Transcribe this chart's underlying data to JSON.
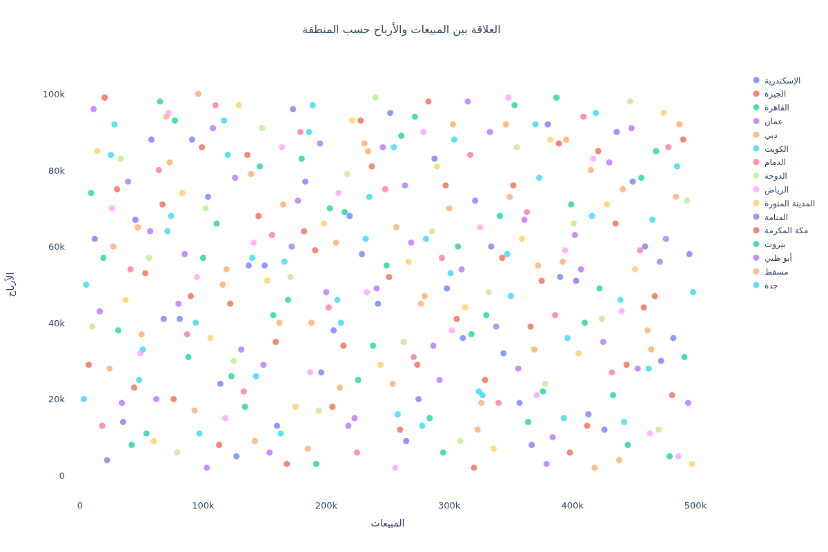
{
  "chart_data": {
    "type": "scatter",
    "title": "العلاقة بين المبيعات والأرباح حسب المنطقة",
    "xlabel": "المبيعات",
    "ylabel": "الأرباح",
    "xlim": [
      0,
      500000
    ],
    "ylim": [
      0,
      100000
    ],
    "xticks": [
      {
        "value": 0,
        "label": "0"
      },
      {
        "value": 100000,
        "label": "100k"
      },
      {
        "value": 200000,
        "label": "200k"
      },
      {
        "value": 300000,
        "label": "300k"
      },
      {
        "value": 400000,
        "label": "400k"
      },
      {
        "value": 500000,
        "label": "500k"
      }
    ],
    "yticks": [
      {
        "value": 0,
        "label": "0"
      },
      {
        "value": 20000,
        "label": "20k"
      },
      {
        "value": 40000,
        "label": "40k"
      },
      {
        "value": 60000,
        "label": "60k"
      },
      {
        "value": 80000,
        "label": "80k"
      },
      {
        "value": 100000,
        "label": "100k"
      }
    ],
    "grid": false,
    "legend": "top right",
    "marker": "circle",
    "series": [
      {
        "name": "الإسكندرية",
        "color": "#636efa",
        "x": [
          12000,
          35000,
          58000,
          81000,
          104000,
          127000,
          150000,
          173000,
          196000,
          219000,
          242000,
          265000,
          288000,
          311000,
          334000,
          357000,
          380000,
          403000,
          426000,
          449000,
          472000,
          495000
        ],
        "values": [
          62000,
          14000,
          88000,
          41000,
          73000,
          5000,
          55000,
          96000,
          27000,
          68000,
          45000,
          9000,
          83000,
          36000,
          60000,
          19000,
          92000,
          51000,
          12000,
          77000,
          30000,
          58000
        ]
      },
      {
        "name": "الجيزة",
        "color": "#ef553b",
        "x": [
          20000,
          44000,
          67000,
          90000,
          113000,
          136000,
          159000,
          182000,
          205000,
          228000,
          251000,
          274000,
          297000,
          320000,
          343000,
          366000,
          389000,
          412000,
          435000,
          458000,
          481000
        ],
        "values": [
          99000,
          23000,
          71000,
          47000,
          8000,
          84000,
          35000,
          64000,
          18000,
          93000,
          52000,
          29000,
          76000,
          2000,
          57000,
          39000,
          87000,
          13000,
          66000,
          44000,
          21000
        ]
      },
      {
        "name": "القاهرة",
        "color": "#00cc96",
        "x": [
          9000,
          31000,
          54000,
          77000,
          100000,
          123000,
          146000,
          169000,
          192000,
          215000,
          238000,
          261000,
          284000,
          307000,
          330000,
          353000,
          376000,
          399000,
          422000,
          445000,
          468000,
          491000
        ],
        "values": [
          74000,
          38000,
          11000,
          93000,
          57000,
          26000,
          81000,
          46000,
          3000,
          69000,
          34000,
          89000,
          15000,
          60000,
          42000,
          97000,
          22000,
          71000,
          49000,
          8000,
          85000,
          31000
        ]
      },
      {
        "name": "عمان",
        "color": "#ab63fa",
        "x": [
          16000,
          39000,
          62000,
          85000,
          108000,
          131000,
          154000,
          177000,
          200000,
          223000,
          246000,
          269000,
          292000,
          315000,
          338000,
          361000,
          384000,
          407000,
          430000,
          453000,
          476000
        ],
        "values": [
          43000,
          77000,
          20000,
          58000,
          91000,
          33000,
          6000,
          72000,
          48000,
          15000,
          86000,
          61000,
          25000,
          98000,
          39000,
          67000,
          10000,
          54000,
          82000,
          28000,
          62000
        ]
      },
      {
        "name": "دبي",
        "color": "#ffa15a",
        "x": [
          24000,
          47000,
          70000,
          93000,
          116000,
          139000,
          162000,
          185000,
          208000,
          231000,
          254000,
          277000,
          300000,
          323000,
          346000,
          369000,
          392000,
          415000,
          438000,
          461000,
          484000
        ],
        "values": [
          28000,
          65000,
          94000,
          17000,
          50000,
          79000,
          40000,
          7000,
          61000,
          87000,
          24000,
          45000,
          70000,
          12000,
          92000,
          33000,
          56000,
          80000,
          4000,
          38000,
          73000
        ]
      },
      {
        "name": "الكويت",
        "color": "#19d3f3",
        "x": [
          5000,
          28000,
          51000,
          74000,
          97000,
          120000,
          143000,
          166000,
          189000,
          212000,
          235000,
          258000,
          281000,
          304000,
          327000,
          350000,
          373000,
          396000,
          419000,
          442000,
          465000,
          498000
        ],
        "values": [
          50000,
          92000,
          33000,
          68000,
          11000,
          84000,
          26000,
          56000,
          97000,
          40000,
          73000,
          16000,
          62000,
          88000,
          21000,
          47000,
          78000,
          36000,
          95000,
          14000,
          67000,
          48000
        ]
      },
      {
        "name": "الدمام",
        "color": "#ff6692",
        "x": [
          18000,
          41000,
          64000,
          87000,
          110000,
          133000,
          156000,
          179000,
          202000,
          225000,
          248000,
          271000,
          294000,
          317000,
          340000,
          363000,
          386000,
          409000,
          432000,
          455000,
          478000
        ],
        "values": [
          13000,
          54000,
          80000,
          37000,
          97000,
          22000,
          63000,
          90000,
          44000,
          6000,
          75000,
          31000,
          57000,
          84000,
          19000,
          69000,
          42000,
          94000,
          27000,
          59000,
          86000
        ]
      },
      {
        "name": "الدوحة",
        "color": "#b6e880",
        "x": [
          10000,
          33000,
          56000,
          79000,
          102000,
          125000,
          148000,
          171000,
          194000,
          217000,
          240000,
          263000,
          286000,
          309000,
          332000,
          355000,
          378000,
          401000,
          424000,
          447000,
          470000,
          493000
        ],
        "values": [
          39000,
          83000,
          57000,
          6000,
          70000,
          30000,
          91000,
          52000,
          17000,
          79000,
          99000,
          35000,
          64000,
          9000,
          48000,
          86000,
          24000,
          66000,
          41000,
          98000,
          12000,
          72000
        ]
      },
      {
        "name": "الرياض",
        "color": "#ff97ff",
        "x": [
          26000,
          49000,
          72000,
          95000,
          118000,
          141000,
          164000,
          187000,
          210000,
          233000,
          256000,
          279000,
          302000,
          325000,
          348000,
          371000,
          394000,
          417000,
          440000,
          463000,
          486000
        ],
        "values": [
          70000,
          32000,
          95000,
          52000,
          15000,
          61000,
          86000,
          27000,
          74000,
          48000,
          2000,
          90000,
          38000,
          65000,
          99000,
          21000,
          59000,
          83000,
          43000,
          11000,
          5000
        ]
      },
      {
        "name": "المدينة المنورة",
        "color": "#fecb52",
        "x": [
          14000,
          37000,
          60000,
          83000,
          106000,
          129000,
          152000,
          175000,
          198000,
          221000,
          244000,
          267000,
          290000,
          313000,
          336000,
          359000,
          382000,
          405000,
          428000,
          451000,
          474000,
          497000
        ],
        "values": [
          85000,
          46000,
          9000,
          74000,
          36000,
          97000,
          51000,
          18000,
          66000,
          93000,
          29000,
          56000,
          81000,
          44000,
          7000,
          62000,
          88000,
          32000,
          71000,
          54000,
          95000,
          3000
        ]
      },
      {
        "name": "المنامة",
        "color": "#636efa",
        "x": [
          22000,
          45000,
          68000,
          91000,
          114000,
          137000,
          160000,
          183000,
          206000,
          229000,
          252000,
          275000,
          298000,
          321000,
          344000,
          367000,
          390000,
          413000,
          436000,
          459000,
          482000
        ],
        "values": [
          4000,
          67000,
          41000,
          88000,
          24000,
          55000,
          13000,
          77000,
          38000,
          58000,
          95000,
          20000,
          49000,
          72000,
          32000,
          8000,
          52000,
          16000,
          90000,
          60000,
          36000
        ]
      },
      {
        "name": "مكة المكرمة",
        "color": "#ef553b",
        "x": [
          7000,
          30000,
          53000,
          76000,
          99000,
          122000,
          145000,
          168000,
          191000,
          214000,
          237000,
          260000,
          283000,
          306000,
          329000,
          352000,
          375000,
          398000,
          421000,
          444000,
          467000,
          490000
        ],
        "values": [
          29000,
          75000,
          53000,
          20000,
          86000,
          45000,
          68000,
          3000,
          59000,
          34000,
          81000,
          12000,
          98000,
          41000,
          25000,
          76000,
          51000,
          6000,
          85000,
          29000,
          47000,
          88000
        ]
      },
      {
        "name": "بيروت",
        "color": "#00cc96",
        "x": [
          19000,
          42000,
          65000,
          88000,
          111000,
          134000,
          157000,
          180000,
          203000,
          226000,
          249000,
          272000,
          295000,
          318000,
          341000,
          364000,
          387000,
          410000,
          433000,
          456000,
          479000
        ],
        "values": [
          57000,
          8000,
          98000,
          31000,
          66000,
          18000,
          42000,
          83000,
          70000,
          25000,
          55000,
          94000,
          6000,
          37000,
          68000,
          14000,
          99000,
          40000,
          21000,
          78000,
          5000
        ]
      },
      {
        "name": "أبو ظبي",
        "color": "#ab63fa",
        "x": [
          11000,
          34000,
          57000,
          80000,
          103000,
          126000,
          149000,
          172000,
          195000,
          218000,
          241000,
          264000,
          287000,
          310000,
          333000,
          356000,
          379000,
          402000,
          425000,
          448000,
          471000,
          494000
        ],
        "values": [
          96000,
          19000,
          64000,
          45000,
          2000,
          78000,
          29000,
          60000,
          87000,
          13000,
          49000,
          76000,
          34000,
          54000,
          90000,
          28000,
          3000,
          63000,
          35000,
          91000,
          56000,
          19000
        ]
      },
      {
        "name": "مسقط",
        "color": "#ffa15a",
        "x": [
          27000,
          50000,
          73000,
          96000,
          119000,
          142000,
          165000,
          188000,
          211000,
          234000,
          257000,
          280000,
          303000,
          326000,
          349000,
          372000,
          395000,
          418000,
          441000,
          464000,
          487000
        ],
        "values": [
          60000,
          37000,
          82000,
          100000,
          54000,
          9000,
          71000,
          40000,
          23000,
          85000,
          65000,
          47000,
          92000,
          19000,
          73000,
          55000,
          88000,
          2000,
          75000,
          33000,
          92000
        ]
      },
      {
        "name": "جدة",
        "color": "#19d3f3",
        "x": [
          3000,
          25000,
          48000,
          71000,
          94000,
          117000,
          140000,
          163000,
          186000,
          209000,
          232000,
          255000,
          278000,
          301000,
          324000,
          347000,
          370000,
          393000,
          416000,
          439000,
          462000,
          485000
        ],
        "values": [
          20000,
          84000,
          25000,
          64000,
          40000,
          93000,
          57000,
          11000,
          90000,
          46000,
          62000,
          86000,
          13000,
          53000,
          22000,
          58000,
          92000,
          15000,
          68000,
          46000,
          28000,
          81000
        ]
      }
    ]
  }
}
